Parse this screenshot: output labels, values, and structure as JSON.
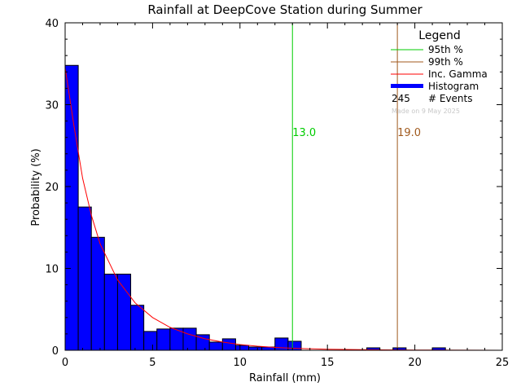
{
  "chart_data": {
    "type": "bar",
    "title": "Rainfall at DeepCove Station during Summer",
    "xlabel": "Rainfall (mm)",
    "ylabel": "Probability (%)",
    "xlim": [
      0,
      25
    ],
    "ylim": [
      0,
      40
    ],
    "xticks": [
      "0",
      "5",
      "10",
      "15",
      "20",
      "25"
    ],
    "yticks": [
      "0",
      "10",
      "20",
      "30",
      "40"
    ],
    "bin_width": 0.75,
    "bins": [
      {
        "x0": 0.0,
        "value": 34.8
      },
      {
        "x0": 0.75,
        "value": 17.5
      },
      {
        "x0": 1.5,
        "value": 13.8
      },
      {
        "x0": 2.25,
        "value": 9.3
      },
      {
        "x0": 3.0,
        "value": 9.3
      },
      {
        "x0": 3.75,
        "value": 5.5
      },
      {
        "x0": 4.5,
        "value": 2.3
      },
      {
        "x0": 5.25,
        "value": 2.6
      },
      {
        "x0": 6.0,
        "value": 2.7
      },
      {
        "x0": 6.75,
        "value": 2.7
      },
      {
        "x0": 7.5,
        "value": 1.9
      },
      {
        "x0": 8.25,
        "value": 1.0
      },
      {
        "x0": 9.0,
        "value": 1.4
      },
      {
        "x0": 9.75,
        "value": 0.6
      },
      {
        "x0": 10.5,
        "value": 0.4
      },
      {
        "x0": 11.25,
        "value": 0.4
      },
      {
        "x0": 12.0,
        "value": 1.5
      },
      {
        "x0": 12.75,
        "value": 1.1
      },
      {
        "x0": 13.5,
        "value": 0.0
      },
      {
        "x0": 14.25,
        "value": 0.0
      },
      {
        "x0": 15.0,
        "value": 0.0
      },
      {
        "x0": 15.75,
        "value": 0.0
      },
      {
        "x0": 16.5,
        "value": 0.0
      },
      {
        "x0": 17.25,
        "value": 0.3
      },
      {
        "x0": 18.0,
        "value": 0.0
      },
      {
        "x0": 18.75,
        "value": 0.3
      },
      {
        "x0": 19.5,
        "value": 0.0
      },
      {
        "x0": 20.25,
        "value": 0.0
      },
      {
        "x0": 21.0,
        "value": 0.3
      }
    ],
    "gamma_curve": {
      "x": [
        0.0,
        0.25,
        0.5,
        1.0,
        1.5,
        2.0,
        3.0,
        4.0,
        5.0,
        6.0,
        7.0,
        8.0,
        9.0,
        10.0,
        11.0,
        12.0,
        13.0,
        15.0,
        18.0,
        21.0,
        25.0
      ],
      "y": [
        34.5,
        31.0,
        27.5,
        21.0,
        16.5,
        13.0,
        8.6,
        5.8,
        4.0,
        2.8,
        2.0,
        1.4,
        1.0,
        0.7,
        0.5,
        0.35,
        0.25,
        0.12,
        0.05,
        0.02,
        0.0
      ]
    },
    "percentiles": [
      {
        "key": "p95",
        "value": 13.0,
        "label": "13.0",
        "color": "#00cc00"
      },
      {
        "key": "p99",
        "value": 19.0,
        "label": "19.0",
        "color": "#a05a1e"
      }
    ],
    "legend": {
      "title": "Legend",
      "placement": "top-right",
      "entries": [
        {
          "label": "95th %",
          "color": "#00cc00",
          "kind": "line"
        },
        {
          "label": "99th %",
          "color": "#a05a1e",
          "kind": "line"
        },
        {
          "label": "Inc. Gamma",
          "color": "#ff0000",
          "kind": "line"
        },
        {
          "label": "Histogram",
          "color": "#0000ff",
          "kind": "bar"
        }
      ],
      "events_count": "245",
      "events_label": "# Events",
      "made_on": "Made on 9 May 2025"
    },
    "colors": {
      "histogram_fill": "#0000ff",
      "histogram_edge": "#000000",
      "gamma": "#ff0000",
      "axis": "#000000",
      "made_on": "#c8c8c8"
    }
  }
}
